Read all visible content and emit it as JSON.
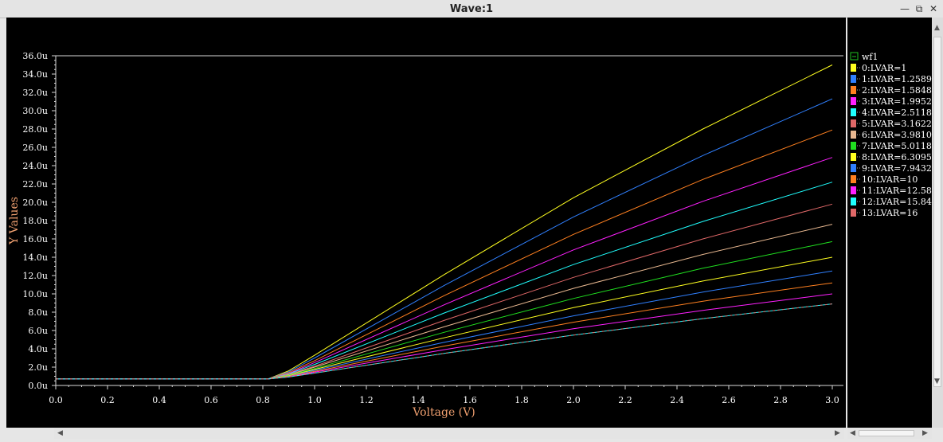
{
  "window": {
    "title": "Wave:1",
    "minimize_label": "—",
    "restore_label": "⧉",
    "close_label": "✕"
  },
  "colors": {
    "background": "#000000",
    "axis": "#d8d8d8",
    "tick_label": "#ffffff",
    "axis_label": "#f0a070",
    "legend_text": "#ffffff",
    "group_box": "#20c020"
  },
  "legend": {
    "group": "wf1",
    "entries": [
      {
        "label": "0:LVAR=1",
        "color": "#ffff20"
      },
      {
        "label": "1:LVAR=1.2589",
        "color": "#3080ff"
      },
      {
        "label": "2:LVAR=1.5848",
        "color": "#ff8020"
      },
      {
        "label": "3:LVAR=1.9952",
        "color": "#ff20ff"
      },
      {
        "label": "4:LVAR=2.5118",
        "color": "#20ffff"
      },
      {
        "label": "5:LVAR=3.1622",
        "color": "#e06868"
      },
      {
        "label": "6:LVAR=3.9810",
        "color": "#e8b890"
      },
      {
        "label": "7:LVAR=5.0118",
        "color": "#20e020"
      },
      {
        "label": "8:LVAR=6.3095",
        "color": "#ffff20"
      },
      {
        "label": "9:LVAR=7.9432",
        "color": "#3080ff"
      },
      {
        "label": "10:LVAR=10",
        "color": "#ff8020"
      },
      {
        "label": "11:LVAR=12.58",
        "color": "#ff20ff"
      },
      {
        "label": "12:LVAR=15.84",
        "color": "#20ffff"
      },
      {
        "label": "13:LVAR=16",
        "color": "#e06868"
      }
    ]
  },
  "chart_data": {
    "type": "line",
    "xlabel": "Voltage (V)",
    "ylabel": "Y Values",
    "xlim": [
      0.0,
      3.0
    ],
    "ylim": [
      0.0,
      36.0
    ],
    "x_ticks": [
      "0.0",
      "0.2",
      "0.4",
      "0.6",
      "0.8",
      "1.0",
      "1.2",
      "1.4",
      "1.6",
      "1.8",
      "2.0",
      "2.2",
      "2.4",
      "2.6",
      "2.8",
      "3.0"
    ],
    "y_ticks": [
      "0.0u",
      "2.0u",
      "4.0u",
      "6.0u",
      "8.0u",
      "10.0u",
      "12.0u",
      "14.0u",
      "16.0u",
      "18.0u",
      "20.0u",
      "22.0u",
      "24.0u",
      "26.0u",
      "28.0u",
      "30.0u",
      "32.0u",
      "34.0u",
      "36.0u"
    ],
    "x_tick_values": [
      0.0,
      0.2,
      0.4,
      0.6,
      0.8,
      1.0,
      1.2,
      1.4,
      1.6,
      1.8,
      2.0,
      2.2,
      2.4,
      2.6,
      2.8,
      3.0
    ],
    "y_tick_values": [
      0,
      2,
      4,
      6,
      8,
      10,
      12,
      14,
      16,
      18,
      20,
      22,
      24,
      26,
      28,
      30,
      32,
      34,
      36
    ],
    "x_unit": "V",
    "y_unit": "u",
    "series": [
      {
        "name": "0:LVAR=1",
        "x": [
          0.0,
          0.82,
          0.9,
          1.0,
          1.5,
          2.0,
          2.5,
          3.0
        ],
        "y": [
          0.7,
          0.7,
          1.6,
          3.3,
          12.1,
          20.5,
          28.0,
          35.0
        ]
      },
      {
        "name": "1:LVAR=1.2589",
        "x": [
          0.0,
          0.82,
          0.9,
          1.0,
          1.5,
          2.0,
          2.5,
          3.0
        ],
        "y": [
          0.7,
          0.7,
          1.5,
          3.0,
          10.9,
          18.4,
          25.1,
          31.3
        ]
      },
      {
        "name": "2:LVAR=1.5848",
        "x": [
          0.0,
          0.82,
          0.9,
          1.0,
          1.5,
          2.0,
          2.5,
          3.0
        ],
        "y": [
          0.7,
          0.7,
          1.4,
          2.7,
          9.8,
          16.5,
          22.5,
          27.9
        ]
      },
      {
        "name": "3:LVAR=1.9952",
        "x": [
          0.0,
          0.82,
          0.9,
          1.0,
          1.5,
          2.0,
          2.5,
          3.0
        ],
        "y": [
          0.7,
          0.7,
          1.3,
          2.5,
          8.8,
          14.8,
          20.1,
          24.9
        ]
      },
      {
        "name": "4:LVAR=2.5118",
        "x": [
          0.0,
          0.82,
          0.9,
          1.0,
          1.5,
          2.0,
          2.5,
          3.0
        ],
        "y": [
          0.7,
          0.7,
          1.25,
          2.3,
          7.9,
          13.2,
          17.9,
          22.2
        ]
      },
      {
        "name": "5:LVAR=3.1622",
        "x": [
          0.0,
          0.82,
          0.9,
          1.0,
          1.5,
          2.0,
          2.5,
          3.0
        ],
        "y": [
          0.7,
          0.7,
          1.2,
          2.1,
          7.1,
          11.8,
          16.0,
          19.8
        ]
      },
      {
        "name": "6:LVAR=3.9810",
        "x": [
          0.0,
          0.82,
          0.9,
          1.0,
          1.5,
          2.0,
          2.5,
          3.0
        ],
        "y": [
          0.7,
          0.7,
          1.15,
          2.0,
          6.4,
          10.6,
          14.3,
          17.6
        ]
      },
      {
        "name": "7:LVAR=5.0118",
        "x": [
          0.0,
          0.82,
          0.9,
          1.0,
          1.5,
          2.0,
          2.5,
          3.0
        ],
        "y": [
          0.7,
          0.7,
          1.1,
          1.85,
          5.8,
          9.5,
          12.8,
          15.7
        ]
      },
      {
        "name": "8:LVAR=6.3095",
        "x": [
          0.0,
          0.82,
          0.9,
          1.0,
          1.5,
          2.0,
          2.5,
          3.0
        ],
        "y": [
          0.7,
          0.7,
          1.05,
          1.75,
          5.2,
          8.5,
          11.4,
          14.0
        ]
      },
      {
        "name": "9:LVAR=7.9432",
        "x": [
          0.0,
          0.82,
          0.9,
          1.0,
          1.5,
          2.0,
          2.5,
          3.0
        ],
        "y": [
          0.7,
          0.7,
          1.0,
          1.65,
          4.7,
          7.6,
          10.2,
          12.5
        ]
      },
      {
        "name": "10:LVAR=10",
        "x": [
          0.0,
          0.82,
          0.9,
          1.0,
          1.5,
          2.0,
          2.5,
          3.0
        ],
        "y": [
          0.7,
          0.7,
          0.98,
          1.55,
          4.3,
          6.9,
          9.2,
          11.2
        ]
      },
      {
        "name": "11:LVAR=12.58",
        "x": [
          0.0,
          0.82,
          0.9,
          1.0,
          1.5,
          2.0,
          2.5,
          3.0
        ],
        "y": [
          0.7,
          0.7,
          0.95,
          1.45,
          3.9,
          6.2,
          8.2,
          10.0
        ]
      },
      {
        "name": "12:LVAR=15.84",
        "x": [
          0.0,
          0.82,
          0.9,
          1.0,
          1.5,
          2.0,
          2.5,
          3.0
        ],
        "y": [
          0.7,
          0.7,
          0.92,
          1.35,
          3.5,
          5.5,
          7.3,
          8.9
        ]
      },
      {
        "name": "13:LVAR=16",
        "x": [
          0.0,
          0.82,
          0.9,
          1.0,
          1.5,
          2.0,
          2.5,
          3.0
        ],
        "y": [
          0.7,
          0.7,
          0.92,
          1.35,
          3.5,
          5.5,
          7.3,
          8.9
        ]
      }
    ]
  }
}
